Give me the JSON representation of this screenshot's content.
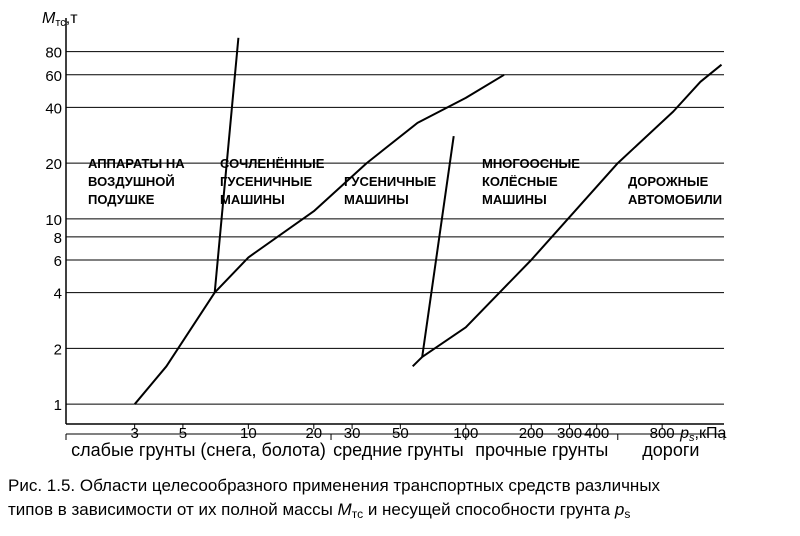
{
  "chart_data": {
    "type": "line",
    "scale": "log-log",
    "grid": "horizontal",
    "y_axis": {
      "label_symbol": "M",
      "label_subscript": "тс",
      "label_unit": ",т",
      "ticks": [
        1,
        2,
        4,
        6,
        8,
        10,
        20,
        40,
        60,
        80
      ],
      "ylim": [
        0.93,
        110
      ]
    },
    "x_axis": {
      "label_symbol": "p",
      "label_subscript": "s",
      "label_unit": ",кПа",
      "ticks": [
        3,
        5,
        10,
        20,
        30,
        50,
        100,
        200,
        300,
        400,
        800
      ],
      "xlim": [
        1.45,
        1540
      ]
    },
    "boundary_lines": [
      {
        "name": "main-boundary",
        "points": [
          [
            3,
            1
          ],
          [
            4.2,
            1.6
          ],
          [
            7,
            4
          ],
          [
            10,
            6.2
          ],
          [
            20,
            11
          ],
          [
            35,
            20
          ],
          [
            60,
            33
          ],
          [
            100,
            45
          ],
          [
            150,
            60
          ]
        ]
      },
      {
        "name": "hovercraft-tracked-boundary",
        "points": [
          [
            7,
            4
          ],
          [
            9,
            95
          ]
        ]
      },
      {
        "name": "tracked-wheeled-boundary",
        "points": [
          [
            63,
            1.8
          ],
          [
            88,
            28
          ]
        ]
      },
      {
        "name": "wheeled-road-boundary",
        "points": [
          [
            57,
            1.6
          ],
          [
            63,
            1.8
          ],
          [
            100,
            2.6
          ],
          [
            200,
            6
          ],
          [
            500,
            20
          ],
          [
            900,
            38
          ],
          [
            1200,
            55
          ],
          [
            1500,
            68
          ]
        ]
      }
    ],
    "region_labels": [
      {
        "id": "hovercraft",
        "lines": [
          "АППАРАТЫ НА",
          "ВОЗДУШНОЙ",
          "ПОДУШКЕ"
        ]
      },
      {
        "id": "articulated",
        "lines": [
          "СОЧЛЕНЁННЫЕ",
          "ГУСЕНИЧНЫЕ",
          "МАШИНЫ"
        ]
      },
      {
        "id": "tracked",
        "lines": [
          "ГУСЕНИЧНЫЕ",
          "МАШИНЫ"
        ]
      },
      {
        "id": "multiaxle",
        "lines": [
          "МНОГООСНЫЕ",
          "КОЛЁСНЫЕ",
          "МАШИНЫ"
        ]
      },
      {
        "id": "road",
        "lines": [
          "ДОРОЖНЫЕ",
          "АВТОМОБИЛИ"
        ]
      }
    ],
    "soil_categories": [
      {
        "label": "слабые грунты (снега, болота)",
        "from": 1.45,
        "to": 24
      },
      {
        "label": "средние грунты",
        "from": 24,
        "to": 100
      },
      {
        "label": "прочные грунты",
        "from": 100,
        "to": 500
      },
      {
        "label": "дороги",
        "from": 500,
        "to": 1540
      }
    ]
  },
  "caption": {
    "line1": "Рис. 1.5. Области целесообразного применения транспортных средств различных",
    "line2_before": "типов в зависимости от их полной массы ",
    "line2_symbol": "M",
    "line2_sub": "тс",
    "line2_middle": " и несущей способности грунта ",
    "line2_symbol2": "p",
    "line2_sub2": "s"
  }
}
